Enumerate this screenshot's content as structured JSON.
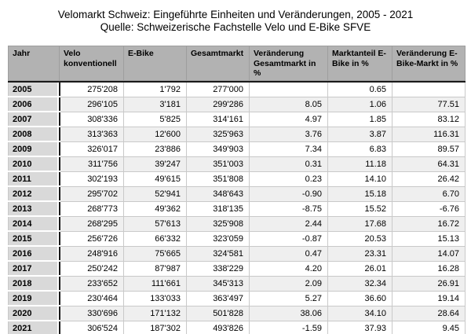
{
  "chart_data": {
    "type": "table",
    "title": "Velomarkt Schweiz: Eingeführte Einheiten und Veränderungen, 2005 - 2021",
    "source": "Quelle: Schweizerische Fachstelle Velo und E-Bike SFVE",
    "columns": [
      "Jahr",
      "Velo konventionell",
      "E-Bike",
      "Gesamtmarkt",
      "Veränderung Gesamtmarkt in %",
      "Marktanteil E-Bike in %",
      "Veränderung E-Bike-Markt in %"
    ],
    "rows": [
      [
        "2005",
        "275'208",
        "1'792",
        "277'000",
        "",
        "0.65",
        ""
      ],
      [
        "2006",
        "296'105",
        "3'181",
        "299'286",
        "8.05",
        "1.06",
        "77.51"
      ],
      [
        "2007",
        "308'336",
        "5'825",
        "314'161",
        "4.97",
        "1.85",
        "83.12"
      ],
      [
        "2008",
        "313'363",
        "12'600",
        "325'963",
        "3.76",
        "3.87",
        "116.31"
      ],
      [
        "2009",
        "326'017",
        "23'886",
        "349'903",
        "7.34",
        "6.83",
        "89.57"
      ],
      [
        "2010",
        "311'756",
        "39'247",
        "351'003",
        "0.31",
        "11.18",
        "64.31"
      ],
      [
        "2011",
        "302'193",
        "49'615",
        "351'808",
        "0.23",
        "14.10",
        "26.42"
      ],
      [
        "2012",
        "295'702",
        "52'941",
        "348'643",
        "-0.90",
        "15.18",
        "6.70"
      ],
      [
        "2013",
        "268'773",
        "49'362",
        "318'135",
        "-8.75",
        "15.52",
        "-6.76"
      ],
      [
        "2014",
        "268'295",
        "57'613",
        "325'908",
        "2.44",
        "17.68",
        "16.72"
      ],
      [
        "2015",
        "256'726",
        "66'332",
        "323'059",
        "-0.87",
        "20.53",
        "15.13"
      ],
      [
        "2016",
        "248'916",
        "75'665",
        "324'581",
        "0.47",
        "23.31",
        "14.07"
      ],
      [
        "2017",
        "250'242",
        "87'987",
        "338'229",
        "4.20",
        "26.01",
        "16.28"
      ],
      [
        "2018",
        "233'652",
        "111'661",
        "345'313",
        "2.09",
        "32.34",
        "26.91"
      ],
      [
        "2019",
        "230'464",
        "133'033",
        "363'497",
        "5.27",
        "36.60",
        "19.14"
      ],
      [
        "2020",
        "330'696",
        "171'132",
        "501'828",
        "38.06",
        "34.10",
        "28.64"
      ],
      [
        "2021",
        "306'524",
        "187'302",
        "493'826",
        "-1.59",
        "37.93",
        "9.45"
      ]
    ],
    "layout_hints": {
      "first_column_highlighted": true,
      "alternating_rows": true,
      "numeric_alignment": "right"
    }
  },
  "colors": {
    "header_bg": "#b2b2b2",
    "year_col_bg": "#d9d9d9",
    "alt_row_bg": "#efefef",
    "light_border": "#c9c9c9",
    "dark_border": "#1a1a1a",
    "text": "#000000",
    "background": "#ffffff"
  }
}
